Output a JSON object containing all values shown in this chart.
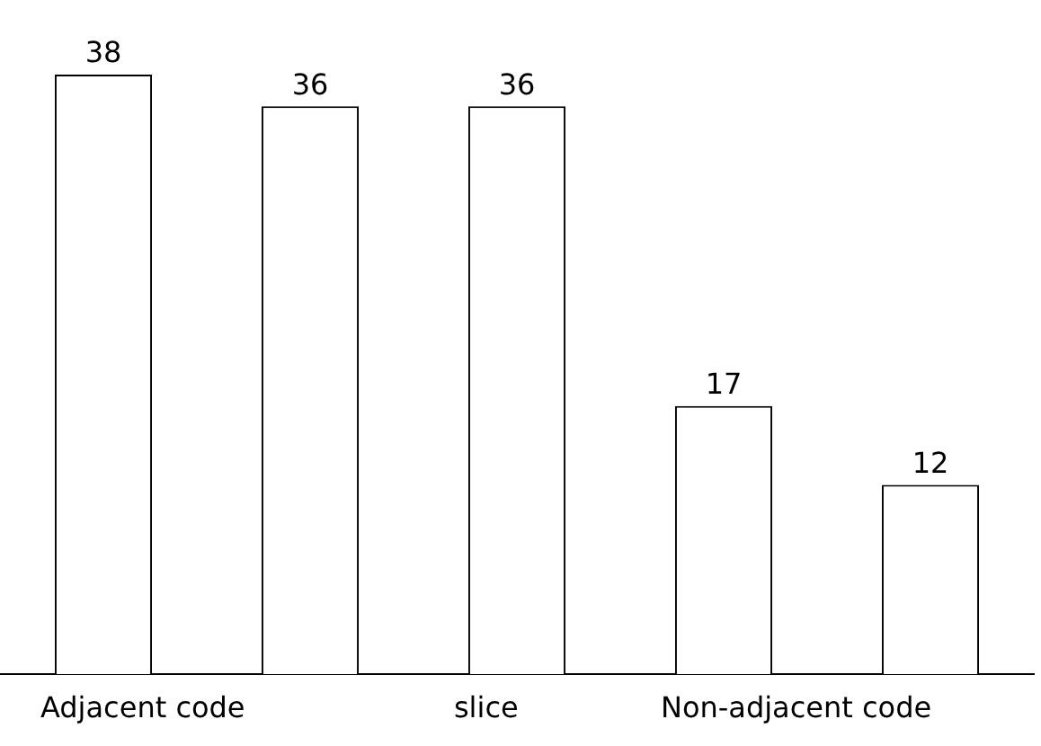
{
  "chart_data": {
    "type": "bar",
    "categories": [
      "Adjacent code",
      null,
      "slice",
      "Non-adjacent code",
      null
    ],
    "values": [
      38,
      36,
      36,
      17,
      12
    ],
    "color": "#ffffff",
    "data_labels": true,
    "grid": false,
    "legend": false
  }
}
